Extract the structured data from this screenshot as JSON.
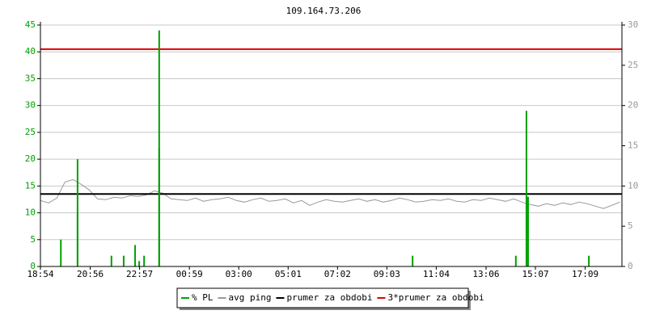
{
  "chart_data": {
    "type": "line",
    "title": "109.164.73.206",
    "xlim": [
      0,
      1425
    ],
    "xticks": [
      {
        "value": 0,
        "label": "18:54"
      },
      {
        "value": 122,
        "label": "20:56"
      },
      {
        "value": 243,
        "label": "22:57"
      },
      {
        "value": 365,
        "label": "00:59"
      },
      {
        "value": 486,
        "label": "03:00"
      },
      {
        "value": 607,
        "label": "05:01"
      },
      {
        "value": 728,
        "label": "07:02"
      },
      {
        "value": 849,
        "label": "09:03"
      },
      {
        "value": 970,
        "label": "11:04"
      },
      {
        "value": 1092,
        "label": "13:06"
      },
      {
        "value": 1213,
        "label": "15:07"
      },
      {
        "value": 1335,
        "label": "17:09"
      }
    ],
    "ylim": [
      0,
      45
    ],
    "yticks": [
      0,
      5,
      10,
      15,
      20,
      25,
      30,
      35,
      40,
      45
    ],
    "y2lim": [
      0,
      30
    ],
    "y2ticks": [
      0,
      5,
      10,
      15,
      20,
      25,
      30
    ],
    "grid": true,
    "series": [
      {
        "name": "% PL",
        "color": "#00a000",
        "style": "spikes",
        "x": [
          50,
          91,
          91,
          174,
          204,
          232,
          242,
          254,
          291,
          291,
          912,
          1165,
          1191,
          1195,
          1344
        ],
        "values": [
          5,
          20,
          10,
          2,
          2,
          4,
          1,
          2,
          44,
          22,
          2,
          2,
          29,
          13,
          2
        ]
      },
      {
        "name": "avg ping",
        "color": "#999999",
        "axis": "y2",
        "style": "line",
        "x": [
          0,
          20,
          40,
          60,
          80,
          100,
          120,
          140,
          160,
          180,
          200,
          220,
          240,
          260,
          280,
          300,
          320,
          340,
          360,
          380,
          400,
          420,
          440,
          460,
          480,
          500,
          520,
          540,
          560,
          580,
          600,
          620,
          640,
          660,
          680,
          700,
          720,
          740,
          760,
          780,
          800,
          820,
          840,
          860,
          880,
          900,
          920,
          940,
          960,
          980,
          1000,
          1020,
          1040,
          1060,
          1080,
          1100,
          1120,
          1140,
          1160,
          1180,
          1200,
          1220,
          1240,
          1260,
          1280,
          1300,
          1320,
          1340,
          1360,
          1380,
          1400,
          1420
        ],
        "values": [
          8.2,
          7.9,
          8.5,
          10.5,
          10.8,
          10.2,
          9.5,
          8.4,
          8.3,
          8.6,
          8.5,
          8.8,
          8.7,
          8.9,
          9.4,
          9.1,
          8.4,
          8.3,
          8.2,
          8.5,
          8.1,
          8.3,
          8.4,
          8.6,
          8.2,
          8.0,
          8.3,
          8.5,
          8.1,
          8.2,
          8.4,
          7.9,
          8.2,
          7.6,
          8.0,
          8.3,
          8.1,
          8.0,
          8.2,
          8.4,
          8.1,
          8.3,
          8.0,
          8.2,
          8.5,
          8.3,
          8.0,
          8.1,
          8.3,
          8.2,
          8.4,
          8.1,
          8.0,
          8.3,
          8.2,
          8.5,
          8.3,
          8.1,
          8.4,
          8.0,
          7.7,
          7.5,
          7.8,
          7.6,
          7.9,
          7.7,
          8.0,
          7.8,
          7.5,
          7.2,
          7.6,
          8.0
        ]
      },
      {
        "name": "prumer za obdobi",
        "color": "#000000",
        "axis": "y2",
        "style": "hline",
        "values": [
          9.0
        ]
      },
      {
        "name": "3*prumer za obdobi",
        "color": "#e00000",
        "axis": "y2",
        "style": "hline",
        "values": [
          27.0
        ]
      }
    ]
  }
}
